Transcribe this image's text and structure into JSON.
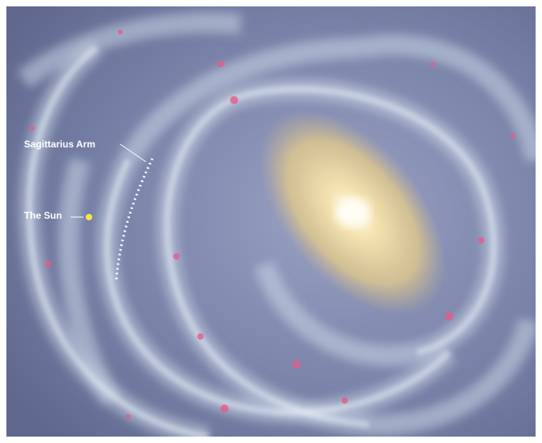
{
  "labels": {
    "sagittarius_arm": "Sagittarius Arm",
    "the_sun": "The Sun"
  }
}
